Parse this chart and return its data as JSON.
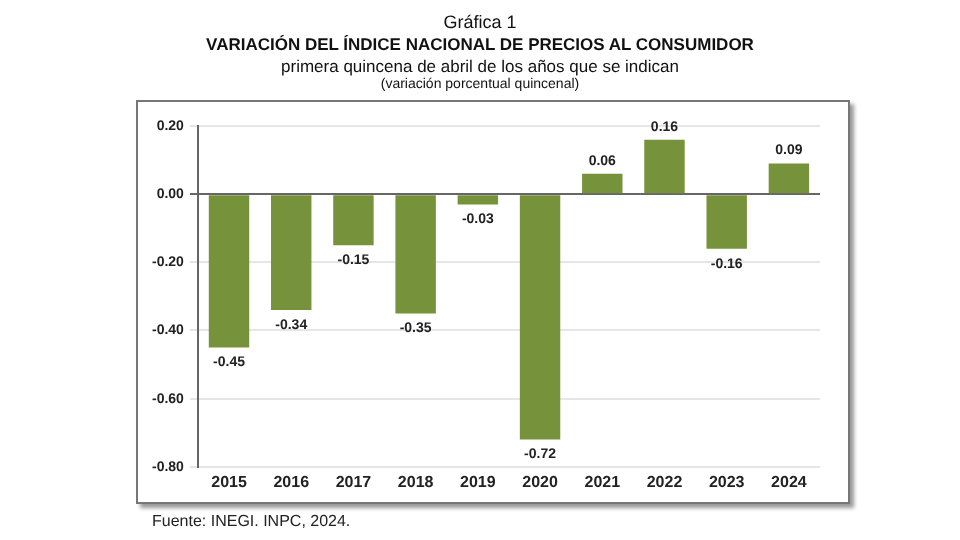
{
  "chart_data": {
    "type": "bar",
    "title": "VARIACIÓN DEL ÍNDICE NACIONAL DE PRECIOS AL CONSUMIDOR",
    "subtitle": "primera quincena de abril de los años que se indican",
    "annotations": [
      "Gráfica 1",
      "(variación porcentual quincenal)",
      "Fuente: INEGI. INPC, 2024."
    ],
    "categories": [
      "2015",
      "2016",
      "2017",
      "2018",
      "2019",
      "2020",
      "2021",
      "2022",
      "2023",
      "2024"
    ],
    "values": [
      -0.45,
      -0.34,
      -0.15,
      -0.35,
      -0.03,
      -0.72,
      0.06,
      0.16,
      -0.16,
      0.09
    ],
    "value_labels": [
      "-0.45",
      "-0.34",
      "-0.15",
      "-0.35",
      "-0.03",
      "-0.72",
      "0.06",
      "0.16",
      "-0.16",
      "0.09"
    ],
    "color": "#76933c",
    "ylim": [
      -0.8,
      0.2
    ],
    "yticks": [
      {
        "value": -0.8,
        "label": "-0.80"
      },
      {
        "value": -0.6,
        "label": "-0.60"
      },
      {
        "value": -0.4,
        "label": "-0.40"
      },
      {
        "value": -0.2,
        "label": "-0.20"
      },
      {
        "value": 0,
        "label": "0.00"
      },
      {
        "value": 0.2,
        "label": "0.20"
      }
    ],
    "grid": "y"
  }
}
